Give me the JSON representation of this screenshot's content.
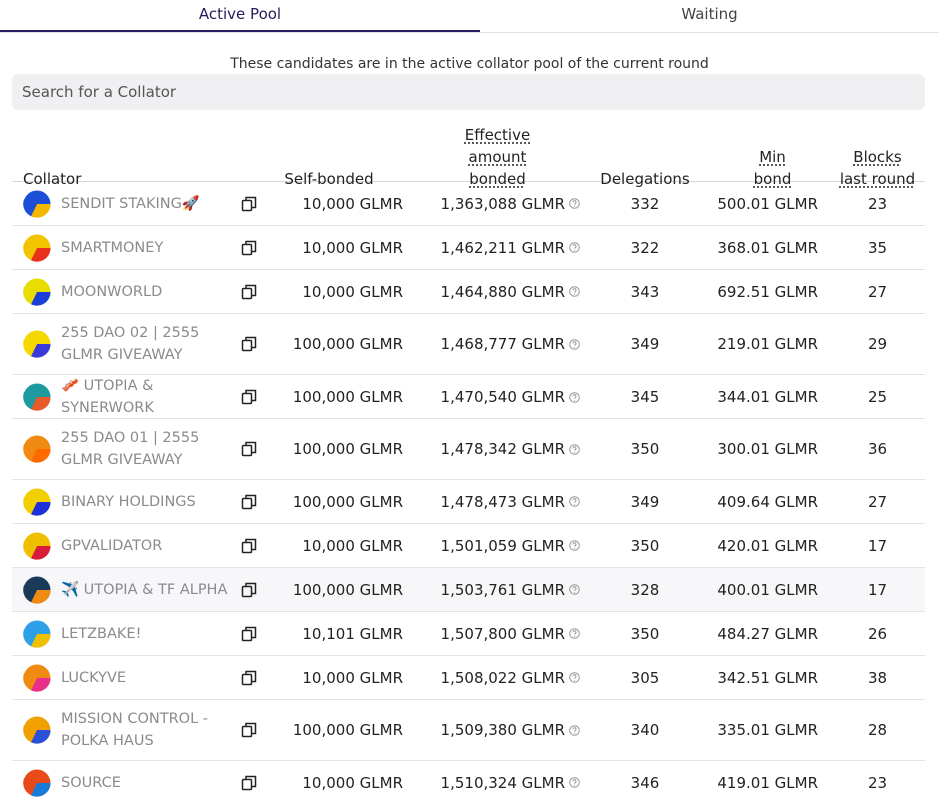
{
  "tabs": [
    "Active Pool",
    "Waiting"
  ],
  "description": "These candidates are in the active collator pool of the current round",
  "search_placeholder": "Search for a Collator",
  "table": {
    "headers": [
      "Collator",
      "Self-bonded",
      "Effective amount bonded",
      "Delegations",
      "Min bond",
      "Blocks last round"
    ],
    "rows": [
      {
        "name": "SENDIT STAKING🚀",
        "self_bonded": "10,000 GLMR",
        "effective": "1,363,088 GLMR",
        "delegations": 332,
        "min_bond": "500.01 GLMR",
        "blocks": 23
      },
      {
        "name": "SMARTMONEY",
        "self_bonded": "10,000 GLMR",
        "effective": "1,462,211 GLMR",
        "delegations": 322,
        "min_bond": "368.01 GLMR",
        "blocks": 35
      },
      {
        "name": "MOONWORLD",
        "self_bonded": "10,000 GLMR",
        "effective": "1,464,880 GLMR",
        "delegations": 343,
        "min_bond": "692.51 GLMR",
        "blocks": 27
      },
      {
        "name": "255 DAO 02 | 2555 GLMR GIVEAWAY",
        "self_bonded": "100,000 GLMR",
        "effective": "1,468,777 GLMR",
        "delegations": 349,
        "min_bond": "219.01 GLMR",
        "blocks": 29
      },
      {
        "name": "🥓 UTOPIA & SYNERWORK",
        "self_bonded": "100,000 GLMR",
        "effective": "1,470,540 GLMR",
        "delegations": 345,
        "min_bond": "344.01 GLMR",
        "blocks": 25
      },
      {
        "name": "255 DAO 01 | 2555 GLMR GIVEAWAY",
        "self_bonded": "100,000 GLMR",
        "effective": "1,478,342 GLMR",
        "delegations": 350,
        "min_bond": "300.01 GLMR",
        "blocks": 36
      },
      {
        "name": "BINARY HOLDINGS",
        "self_bonded": "100,000 GLMR",
        "effective": "1,478,473 GLMR",
        "delegations": 349,
        "min_bond": "409.64 GLMR",
        "blocks": 27
      },
      {
        "name": "GPVALIDATOR",
        "self_bonded": "10,000 GLMR",
        "effective": "1,501,059 GLMR",
        "delegations": 350,
        "min_bond": "420.01 GLMR",
        "blocks": 17
      },
      {
        "name": "✈️ UTOPIA & TF ALPHA",
        "self_bonded": "100,000 GLMR",
        "effective": "1,503,761 GLMR",
        "delegations": 328,
        "min_bond": "400.01 GLMR",
        "blocks": 17
      },
      {
        "name": "LETZBAKE!",
        "self_bonded": "10,101 GLMR",
        "effective": "1,507,800 GLMR",
        "delegations": 350,
        "min_bond": "484.27 GLMR",
        "blocks": 26
      },
      {
        "name": "LUCKYVE",
        "self_bonded": "10,000 GLMR",
        "effective": "1,508,022 GLMR",
        "delegations": 305,
        "min_bond": "342.51 GLMR",
        "blocks": 38
      },
      {
        "name": "MISSION CONTROL - POLKA HAUS",
        "self_bonded": "100,000 GLMR",
        "effective": "1,509,380 GLMR",
        "delegations": 340,
        "min_bond": "335.01 GLMR",
        "blocks": 28
      },
      {
        "name": "SOURCE",
        "self_bonded": "10,000 GLMR",
        "effective": "1,510,324 GLMR",
        "delegations": 346,
        "min_bond": "419.01 GLMR",
        "blocks": 23
      }
    ]
  }
}
